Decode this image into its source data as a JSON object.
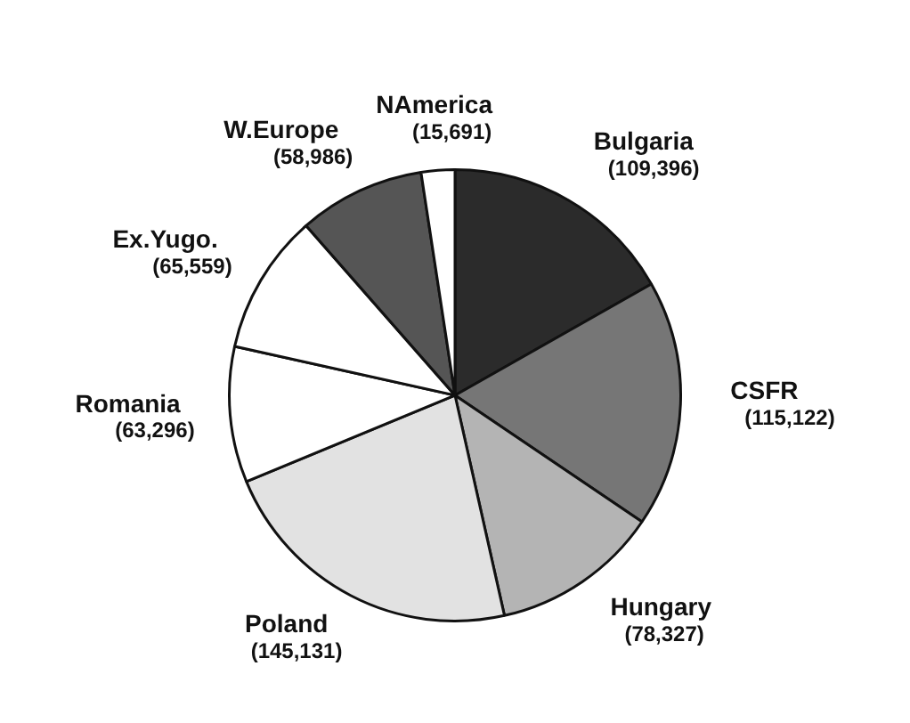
{
  "chart_data": {
    "type": "pie",
    "categories": [
      "Bulgaria",
      "CSFR",
      "Hungary",
      "Poland",
      "Romania",
      "Ex.Yugo.",
      "W.Europe",
      "NAmerica"
    ],
    "values": [
      109396,
      115122,
      78327,
      145131,
      63296,
      65559,
      58986,
      15691
    ],
    "value_labels": [
      "(109,396)",
      "(115,122)",
      "(78,327)",
      "(145,131)",
      "(63,296)",
      "(65,559)",
      "(58,986)",
      "(15,691)"
    ],
    "colors": [
      "#2b2b2b",
      "#767676",
      "#b4b4b4",
      "#e2e2e2",
      "#ffffff",
      "#ffffff",
      "#555555",
      "#ffffff"
    ],
    "legend": false
  }
}
